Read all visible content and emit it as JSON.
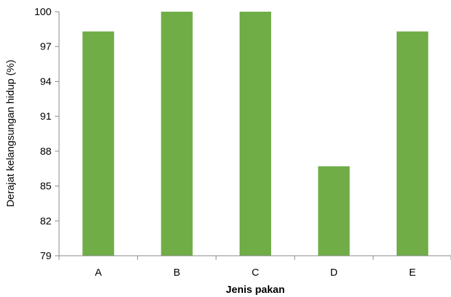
{
  "chart_data": {
    "type": "bar",
    "categories": [
      "A",
      "B",
      "C",
      "D",
      "E"
    ],
    "values": [
      98.3,
      100,
      100,
      86.7,
      98.3
    ],
    "xlabel": "Jenis pakan",
    "ylabel": "Derajat kelangsungan hidup (%)",
    "ylim": [
      79,
      100
    ],
    "yticks": [
      79,
      82,
      85,
      88,
      91,
      94,
      97,
      100
    ],
    "grid": false,
    "legend": "none",
    "bar_color": "#70AD47",
    "axis_color": "#868686"
  }
}
